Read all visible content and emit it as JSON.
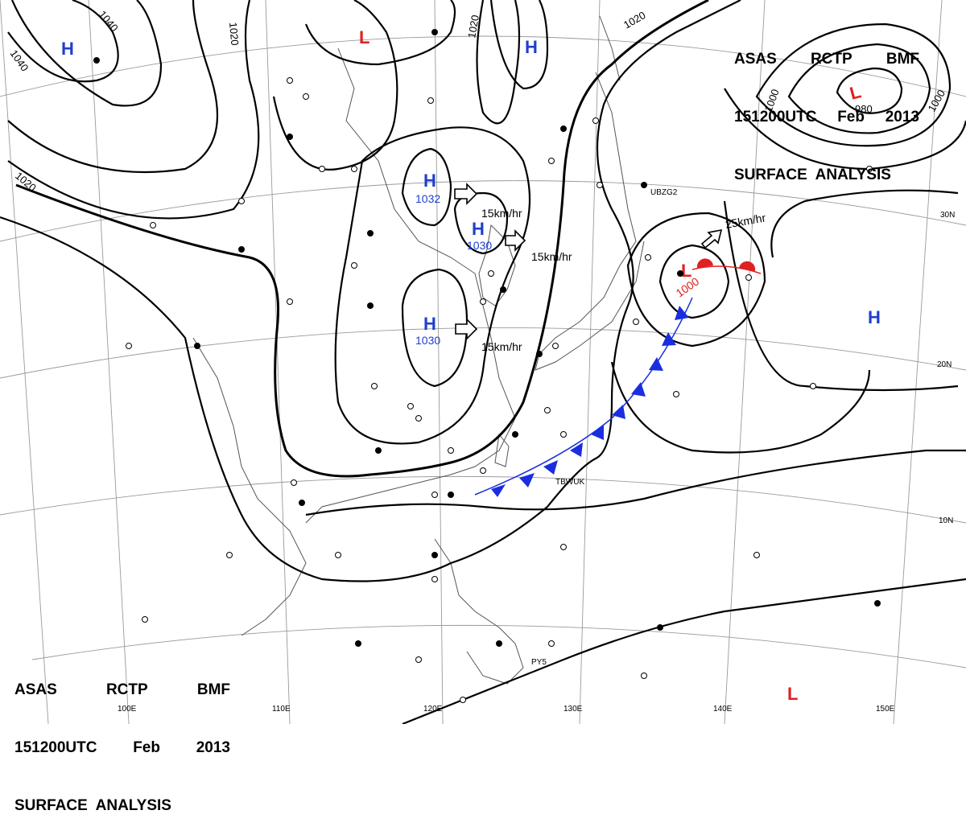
{
  "title": {
    "line1": [
      "ASAS",
      "RCTP",
      "BMF"
    ],
    "line2": [
      "151200UTC",
      "Feb",
      "2013"
    ],
    "line3": "SURFACE  ANALYSIS"
  },
  "isobars": {
    "labels": [
      "1040",
      "1040",
      "1020",
      "1020",
      "1020",
      "1020",
      "1000",
      "980",
      "1000"
    ]
  },
  "pressure_centers": {
    "highs": [
      {
        "symbol": "H",
        "value": ""
      },
      {
        "symbol": "H",
        "value": ""
      },
      {
        "symbol": "H",
        "value": "1032"
      },
      {
        "symbol": "H",
        "value": "1030"
      },
      {
        "symbol": "H",
        "value": "1030"
      },
      {
        "symbol": "H",
        "value": ""
      }
    ],
    "lows": [
      {
        "symbol": "L",
        "value": ""
      },
      {
        "symbol": "L",
        "value": ""
      },
      {
        "symbol": "L",
        "value": "1000"
      },
      {
        "symbol": "L",
        "value": ""
      }
    ]
  },
  "movement": [
    "15km/hr",
    "15km/hr",
    "15km/hr",
    "25km/hr"
  ],
  "longitudes": [
    "100E",
    "110E",
    "120E",
    "130E",
    "140E",
    "150E"
  ],
  "latitudes": [
    "30N",
    "20N",
    "10N"
  ],
  "ship_ids": [
    "UBZG2",
    "TBWUK",
    "PY5"
  ],
  "colors": {
    "isobar": "#000000",
    "grid": "#9a9a9a",
    "coast": "#555555",
    "high": "#1f3fd0",
    "low": "#e02020",
    "cold_front": "#1a2ee0",
    "warm_front": "#e02020"
  }
}
